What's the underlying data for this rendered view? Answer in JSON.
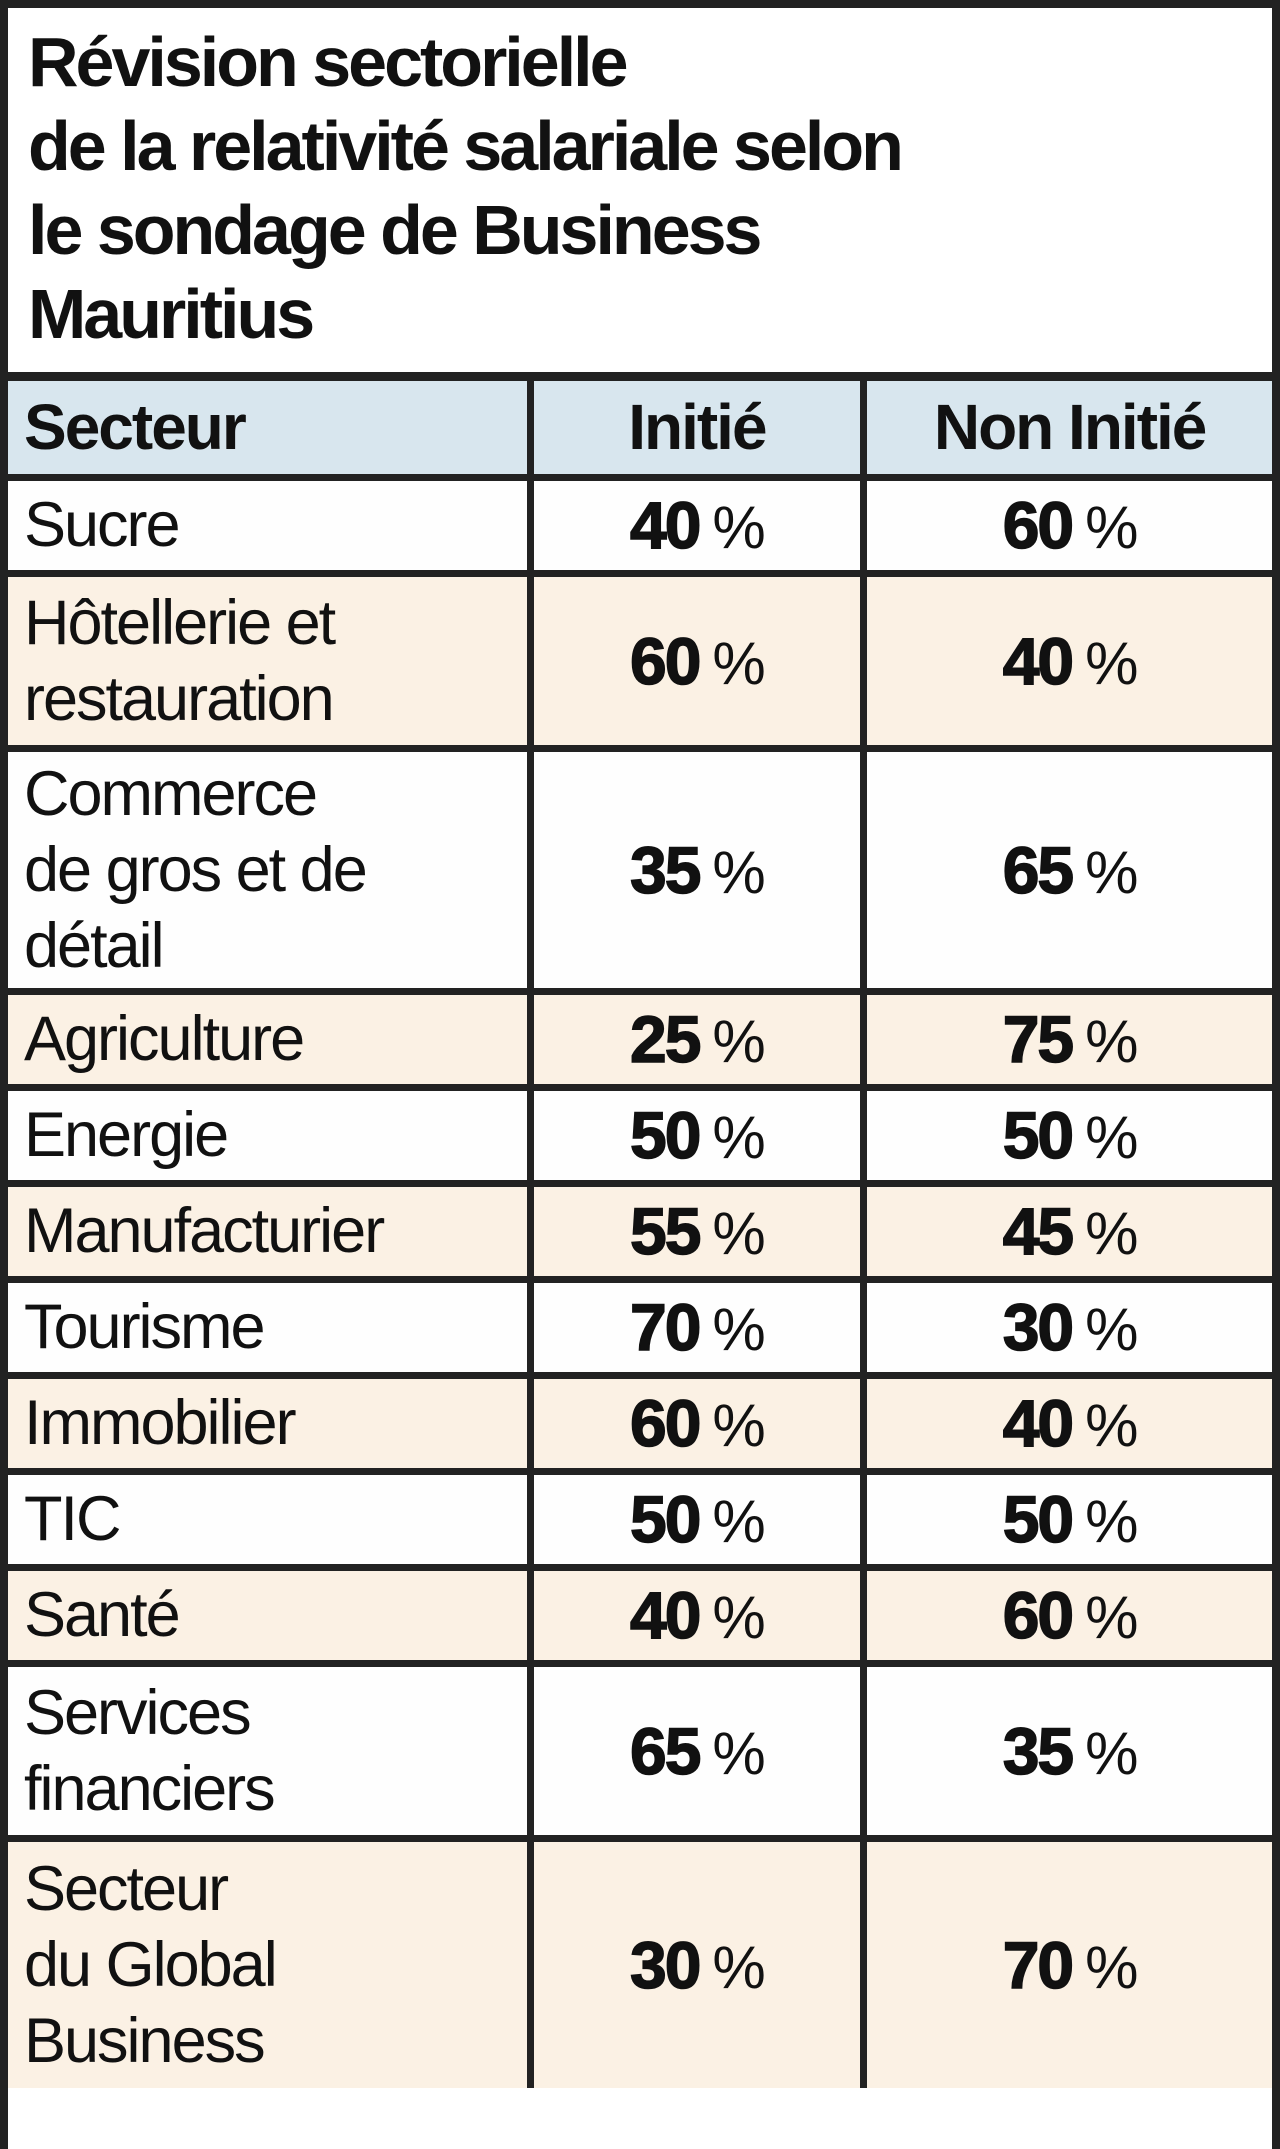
{
  "title": {
    "text": "Révision sectorielle\nde la relativité salariale selon\nle sondage de Business\nMauritius"
  },
  "labels": {
    "percent": "%"
  },
  "colors": {
    "header_bg": "#d8e6ee",
    "row_alt_bg": "#fbf1e4",
    "row_bg": "#fefefe",
    "border": "#222222",
    "text": "#111111"
  },
  "table": {
    "headers": [
      "Secteur",
      "Initié",
      "Non Initié"
    ],
    "rows": [
      {
        "secteur": "Sucre",
        "initie": "40",
        "non_initie": "60"
      },
      {
        "secteur": "Hôtellerie et\nrestauration",
        "initie": "60",
        "non_initie": "40"
      },
      {
        "secteur": "Commerce\nde gros et de\ndétail",
        "initie": "35",
        "non_initie": "65"
      },
      {
        "secteur": "Agriculture",
        "initie": "25",
        "non_initie": "75"
      },
      {
        "secteur": "Energie",
        "initie": "50",
        "non_initie": "50"
      },
      {
        "secteur": "Manufacturier",
        "initie": "55",
        "non_initie": "45"
      },
      {
        "secteur": "Tourisme",
        "initie": "70",
        "non_initie": "30"
      },
      {
        "secteur": "Immobilier",
        "initie": "60",
        "non_initie": "40"
      },
      {
        "secteur": "TIC",
        "initie": "50",
        "non_initie": "50"
      },
      {
        "secteur": "Santé",
        "initie": "40",
        "non_initie": "60"
      },
      {
        "secteur": "Services\nfinanciers",
        "initie": "65",
        "non_initie": "35"
      },
      {
        "secteur": "Secteur\ndu Global\nBusiness",
        "initie": "30",
        "non_initie": "70"
      }
    ]
  },
  "chart_data": {
    "type": "table",
    "title": "Révision sectorielle de la relativité salariale selon le sondage de Business Mauritius",
    "columns": [
      "Secteur",
      "Initié",
      "Non Initié"
    ],
    "categories": [
      "Sucre",
      "Hôtellerie et restauration",
      "Commerce de gros et de détail",
      "Agriculture",
      "Energie",
      "Manufacturier",
      "Tourisme",
      "Immobilier",
      "TIC",
      "Santé",
      "Services financiers",
      "Secteur du Global Business"
    ],
    "series": [
      {
        "name": "Initié",
        "unit": "%",
        "values": [
          40,
          60,
          35,
          25,
          50,
          55,
          70,
          60,
          50,
          40,
          65,
          30
        ]
      },
      {
        "name": "Non Initié",
        "unit": "%",
        "values": [
          60,
          40,
          65,
          75,
          50,
          45,
          30,
          40,
          50,
          60,
          35,
          70
        ]
      }
    ]
  }
}
